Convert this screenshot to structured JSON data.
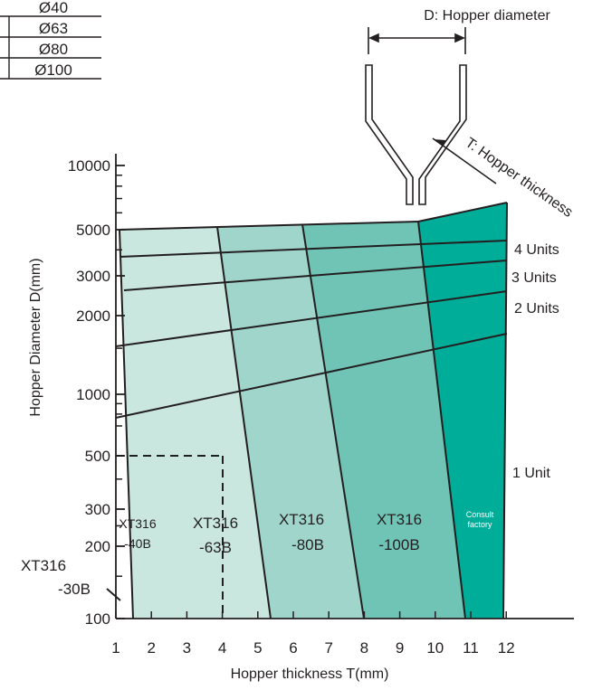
{
  "colors": {
    "zone_1": "#c9e6df",
    "zone_2": "#a0d5cb",
    "zone_3": "#70c4b5",
    "zone_4": "#00ad98",
    "lines": "#231f20",
    "background": "#ffffff"
  },
  "size_table": [
    "Ø40",
    "Ø63",
    "Ø80",
    "Ø100"
  ],
  "hopper_sketch": {
    "diameter_label": "D: Hopper diameter",
    "thickness_label": "T: Hopper thickness"
  },
  "chart_data": {
    "type": "area",
    "xlabel": "Hopper thickness T(mm)",
    "ylabel": "Hopper Diameter D(mm)",
    "x_ticks": [
      1,
      2,
      3,
      4,
      5,
      6,
      7,
      8,
      9,
      10,
      11,
      12
    ],
    "y_ticks": [
      100,
      200,
      300,
      500,
      1000,
      2000,
      3000,
      5000,
      10000
    ],
    "y_scale": "log",
    "xlim": [
      1,
      13.9
    ],
    "ylim": [
      100,
      10000
    ],
    "zones": [
      {
        "model": "XT316",
        "suffix": "-40B",
        "x_at_100": 2.4
      },
      {
        "model": "XT316",
        "suffix": "-63B",
        "x_at_100": 3.9
      },
      {
        "model": "XT316",
        "suffix": "-80B",
        "x_at_100": 6.5
      },
      {
        "model": "XT316",
        "suffix": "-100B",
        "x_at_100": 9.4
      },
      {
        "model": "Consult",
        "suffix": "factory",
        "x_at_100": 12
      }
    ],
    "zone_label_1": {
      "model": "XT316",
      "suffix": "-40B"
    },
    "zone_label_2": {
      "model": "XT316",
      "suffix": "-63B"
    },
    "zone_label_3": {
      "model": "XT316",
      "suffix": "-80B"
    },
    "zone_label_4": {
      "model": "XT316",
      "suffix": "-100B"
    },
    "zone_label_5": {
      "model": "Consult",
      "suffix": "factory"
    },
    "small_model": {
      "model": "XT316",
      "suffix": "-30B",
      "range_x": [
        1,
        1.7
      ]
    },
    "dashed_guide": {
      "x": 4,
      "y": 500
    },
    "unit_lines": [
      {
        "label": "2 Units",
        "from": [
          1,
          1800
        ],
        "to": [
          12,
          2500
        ]
      },
      {
        "label": "3 Units",
        "from": [
          1.5,
          2600
        ],
        "to": [
          12,
          3200
        ]
      },
      {
        "label": "4 Units",
        "from": [
          1.2,
          3800
        ],
        "to": [
          12,
          4100
        ]
      }
    ],
    "unit_label_1": "1 Unit",
    "unit_label_2": "2 Units",
    "unit_label_3": "3 Units",
    "unit_label_4": "4 Units",
    "one_unit_line": {
      "from": [
        1,
        750
      ],
      "to": [
        12,
        1250
      ]
    }
  }
}
